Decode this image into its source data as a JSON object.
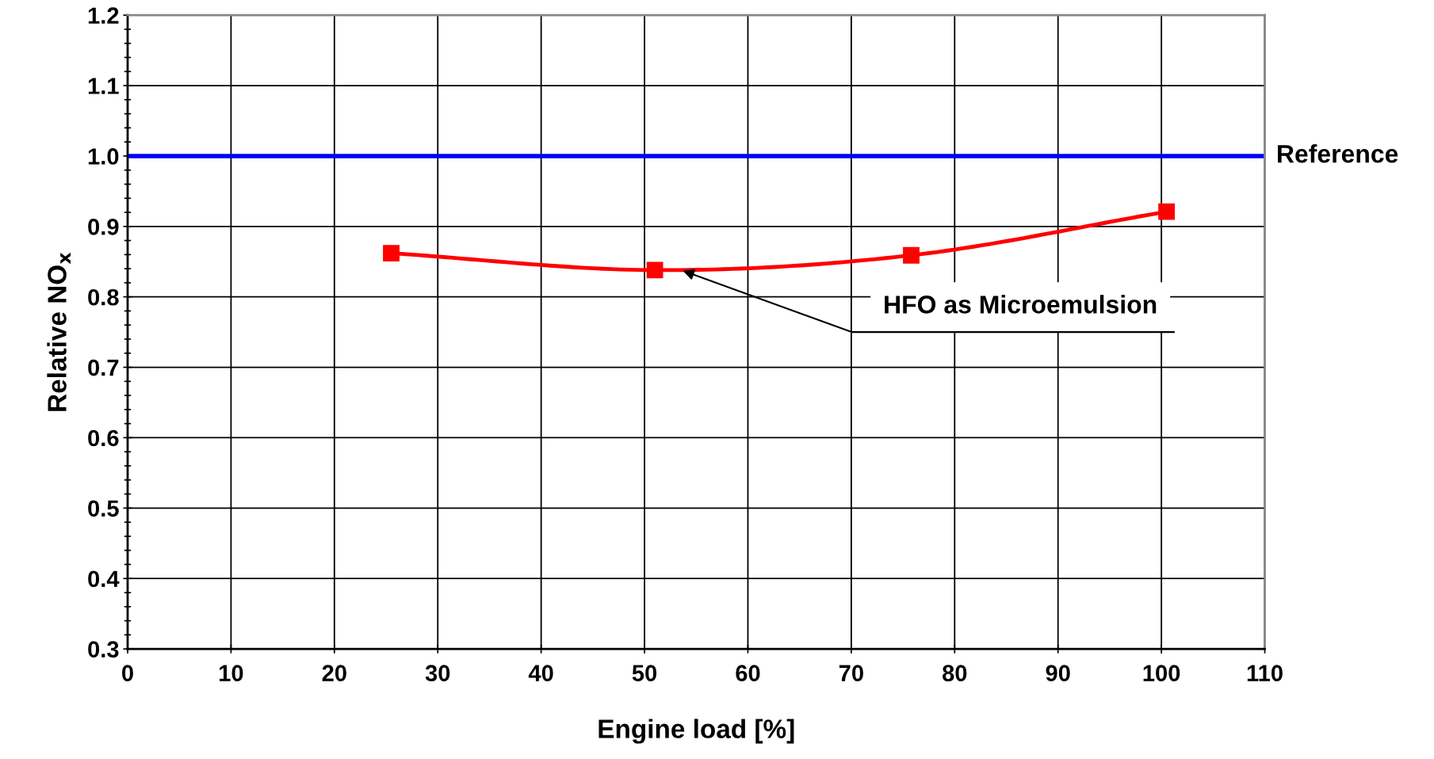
{
  "chart_data": {
    "type": "line",
    "xlabel": "Engine load [%]",
    "ylabel": "Relative NO$_{x}$",
    "x": [
      25.5,
      51,
      75.8,
      100.5
    ],
    "series": [
      {
        "color": "#ff0000",
        "values": [
          0.862,
          0.838,
          0.859,
          0.921
        ]
      }
    ],
    "marker": "square",
    "line_style": "solid",
    "xlim": [
      0,
      110
    ],
    "xticks": [
      0,
      10,
      20,
      30,
      40,
      50,
      60,
      70,
      80,
      90,
      100,
      110
    ],
    "ylim": [
      0.3,
      1.2
    ],
    "yticks": [
      {
        "value": 0.3,
        "label": "0.3"
      },
      {
        "value": 0.4,
        "label": "0.4"
      },
      {
        "value": 0.5,
        "label": "0.5"
      },
      {
        "value": 0.6,
        "label": "0.6"
      },
      {
        "value": 0.7,
        "label": "0.7"
      },
      {
        "value": 0.8,
        "label": "0.8"
      },
      {
        "value": 0.9,
        "label": "0.9"
      },
      {
        "value": 1.0,
        "label": "1.0"
      },
      {
        "value": 1.1,
        "label": "1.1"
      },
      {
        "value": 1.2,
        "label": "1.2"
      }
    ],
    "grid": true,
    "ref_lines": [
      {
        "axis": "y",
        "value": 1.0,
        "label": "Reference",
        "color": "#0000ff"
      }
    ],
    "annotations": [
      "HFO as Microemulsion"
    ]
  }
}
